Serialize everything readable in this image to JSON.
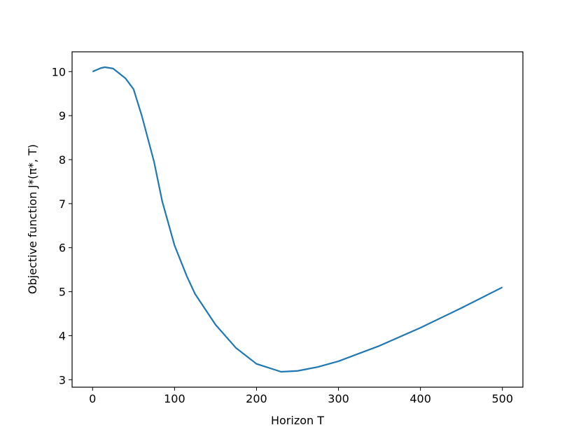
{
  "chart_data": {
    "type": "line",
    "x_label": "Horizon T",
    "y_label": "Objective function J*(π*, T)",
    "x": [
      0,
      10,
      15,
      25,
      40,
      50,
      60,
      75,
      85,
      100,
      115,
      125,
      150,
      175,
      200,
      230,
      250,
      275,
      300,
      350,
      400,
      450,
      500
    ],
    "series": [
      {
        "name": "J*",
        "color": "#1f77b4",
        "values": [
          10.0,
          10.08,
          10.1,
          10.07,
          9.85,
          9.6,
          9.0,
          7.95,
          7.05,
          6.05,
          5.35,
          4.95,
          4.25,
          3.72,
          3.36,
          3.18,
          3.2,
          3.29,
          3.42,
          3.77,
          4.18,
          4.63,
          5.1
        ]
      }
    ],
    "xlim": [
      -25,
      525
    ],
    "ylim": [
      2.83,
      10.45
    ],
    "xticks": [
      0,
      100,
      200,
      300,
      400,
      500
    ],
    "yticks": [
      3,
      4,
      5,
      6,
      7,
      8,
      9,
      10
    ]
  }
}
